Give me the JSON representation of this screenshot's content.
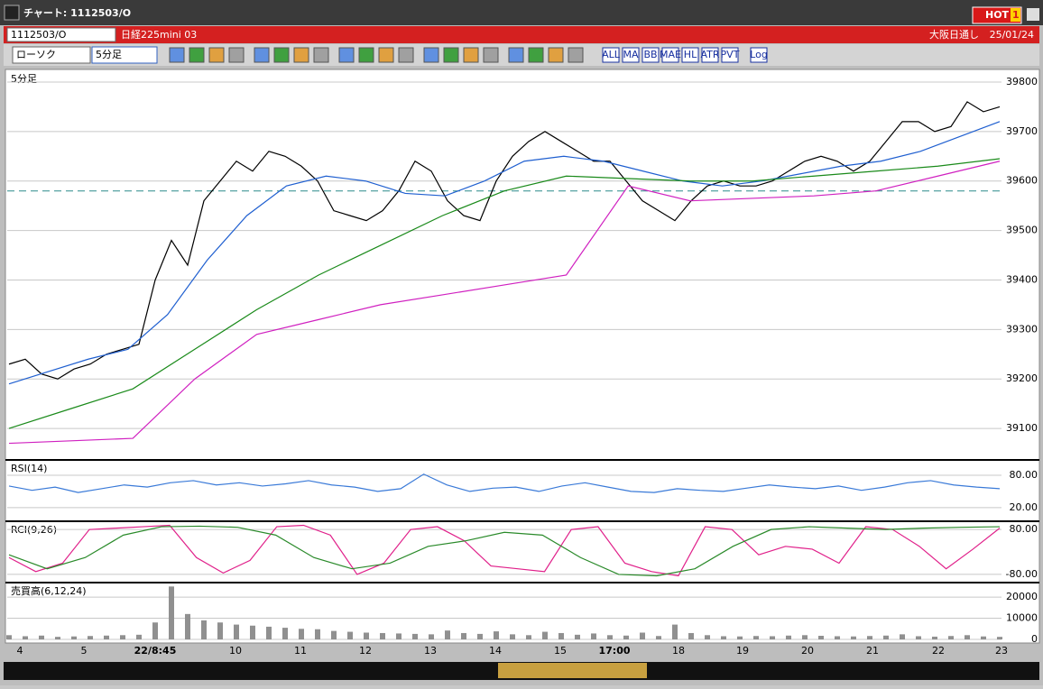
{
  "window": {
    "title": "チャート: 1112503/O",
    "hot_button": "HOT",
    "hot_number": "1"
  },
  "header": {
    "symbol": "1112503/O",
    "instrument": "日経225mini 03",
    "session": "大阪日通し",
    "date": "25/01/24"
  },
  "toolbar": {
    "chart_type": "ローソク",
    "interval": "5分足",
    "icon_labels": [
      "ALL",
      "MA",
      "BB",
      "MAE",
      "HL",
      "ATR",
      "PVT",
      "Log"
    ]
  },
  "x_labels": [
    "4",
    "5",
    "22/8:45",
    "10",
    "11",
    "12",
    "13",
    "14",
    "15",
    "17:00",
    "18",
    "19",
    "20",
    "21",
    "22",
    "23"
  ],
  "panels": [
    {
      "label": "5分足",
      "ylim": [
        39040,
        39820
      ],
      "yticks": [
        39800,
        39700,
        39600,
        39500,
        39400,
        39300,
        39200,
        39100
      ],
      "reference_line": 39580,
      "series": [
        {
          "color": "#000000",
          "values": [
            39230,
            39240,
            39210,
            39200,
            39220,
            39230,
            39250,
            39260,
            39270,
            39400,
            39480,
            39430,
            39560,
            39600,
            39640,
            39620,
            39660,
            39650,
            39630,
            39600,
            39540,
            39530,
            39520,
            39540,
            39580,
            39640,
            39620,
            39560,
            39530,
            39520,
            39600,
            39650,
            39680,
            39700,
            39680,
            39660,
            39640,
            39640,
            39600,
            39560,
            39540,
            39520,
            39560,
            39590,
            39600,
            39590,
            39590,
            39600,
            39620,
            39640,
            39650,
            39640,
            39620,
            39640,
            39680,
            39720,
            39720,
            39700,
            39710,
            39760,
            39740,
            39750
          ]
        },
        {
          "color": "#1f5fd0",
          "values": [
            39190,
            39215,
            39240,
            39260,
            39330,
            39440,
            39530,
            39590,
            39610,
            39600,
            39575,
            39570,
            39600,
            39640,
            39650,
            39640,
            39620,
            39600,
            39590,
            39600,
            39615,
            39630,
            39640,
            39660,
            39690,
            39720
          ]
        },
        {
          "color": "#1a8a1a",
          "values": [
            39100,
            39140,
            39180,
            39260,
            39340,
            39410,
            39470,
            39530,
            39580,
            39610,
            39605,
            39600,
            39600,
            39610,
            39620,
            39630,
            39645
          ]
        },
        {
          "color": "#d020c0",
          "values": [
            39070,
            39075,
            39080,
            39200,
            39290,
            39320,
            39350,
            39370,
            39390,
            39410,
            39590,
            39560,
            39565,
            39570,
            39580,
            39610,
            39640
          ]
        }
      ]
    },
    {
      "label": "RSI(14)",
      "ylim": [
        -2,
        105
      ],
      "yticks": [
        {
          "value": 80,
          "label": "80.00"
        },
        {
          "value": 20,
          "label": "20.00"
        }
      ],
      "series": [
        {
          "color": "#3a7ad8",
          "values": [
            60,
            52,
            58,
            48,
            55,
            62,
            58,
            66,
            70,
            62,
            66,
            60,
            64,
            70,
            62,
            58,
            50,
            55,
            82,
            62,
            50,
            56,
            58,
            50,
            60,
            66,
            58,
            50,
            48,
            55,
            52,
            50,
            56,
            62,
            58,
            55,
            60,
            52,
            58,
            66,
            70,
            62,
            58,
            55
          ]
        }
      ]
    },
    {
      "label": "RCI(9,26)",
      "ylim": [
        -106,
        103
      ],
      "yticks": [
        {
          "value": 80,
          "label": "80.00"
        },
        {
          "value": -80,
          "label": "-80.00"
        }
      ],
      "series": [
        {
          "color": "#e0208a",
          "values": [
            -20,
            -70,
            -40,
            80,
            85,
            90,
            95,
            -20,
            -75,
            -30,
            90,
            95,
            60,
            -80,
            -40,
            80,
            90,
            40,
            -50,
            -60,
            -70,
            80,
            90,
            -40,
            -70,
            -85,
            90,
            80,
            -10,
            20,
            10,
            -40,
            90,
            80,
            20,
            -60,
            10,
            85
          ]
        },
        {
          "color": "#2a8a2a",
          "values": [
            -10,
            -60,
            -20,
            60,
            90,
            92,
            88,
            60,
            -20,
            -60,
            -40,
            20,
            40,
            70,
            60,
            -20,
            -80,
            -85,
            -60,
            20,
            80,
            90,
            85,
            80,
            85,
            88,
            90
          ]
        }
      ]
    },
    {
      "label": "売買高(6,12,24)",
      "ylim": [
        0,
        26000
      ],
      "yticks": [
        20000,
        10000,
        0
      ],
      "series": [
        {
          "color": "#909090",
          "bars": true,
          "values": [
            2000,
            1500,
            1800,
            1200,
            1400,
            1600,
            1800,
            2000,
            2200,
            8000,
            25000,
            12000,
            9000,
            8000,
            7000,
            6500,
            6000,
            5500,
            5000,
            4800,
            4000,
            3600,
            3200,
            3000,
            2800,
            2600,
            2400,
            4200,
            3000,
            2600,
            3800,
            2400,
            2000,
            3600,
            3000,
            2200,
            2800,
            2000,
            1800,
            3200,
            1600,
            7000,
            3000,
            2000,
            1500,
            1400,
            1600,
            1500,
            1800,
            2000,
            1700,
            1500,
            1400,
            1600,
            1800,
            2400,
            1500,
            1300,
            1600,
            2000,
            1400,
            1200
          ]
        }
      ]
    }
  ]
}
